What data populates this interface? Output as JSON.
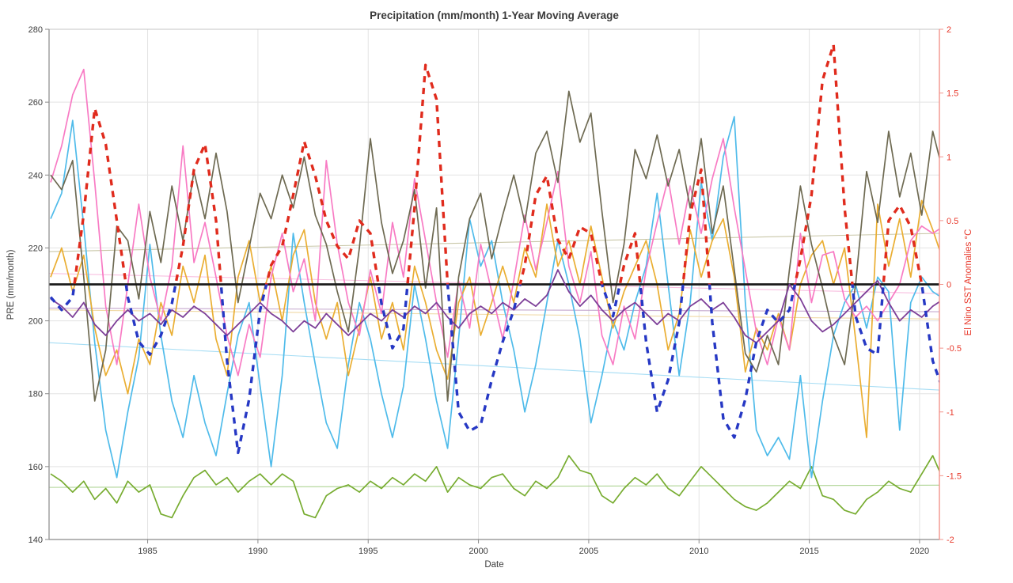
{
  "chart_data": {
    "type": "line",
    "title": "Precipitation (mm/month) 1-Year Moving Average",
    "xlabel": "Date",
    "ylabel_left": "PRE (mm/month)",
    "ylabel_right": "El Nino SST Anomalies °C",
    "grid": true,
    "legend": "none",
    "x_range": [
      1980.53,
      2020.9
    ],
    "x_ticks": [
      1985,
      1990,
      1995,
      2000,
      2005,
      2010,
      2015,
      2020
    ],
    "y_left": {
      "range": [
        140,
        280
      ],
      "ticks": [
        140,
        160,
        180,
        200,
        220,
        240,
        260,
        280
      ]
    },
    "y_right": {
      "range": [
        -2,
        2
      ],
      "ticks": [
        -2,
        -1.5,
        -1,
        -0.5,
        0,
        0.5,
        1,
        1.5,
        2
      ]
    },
    "colors": {
      "grid": "#e3e3e3",
      "box": "#c4c4c4",
      "left_spine": "#8a8a8a",
      "bottom_spine": "#8a8a8a",
      "right_spine": "#f2948c",
      "left_tick_text": "#3c3c3c",
      "right_tick_text": "#e8392b",
      "zero_line": "#1a1a1a"
    },
    "zero_line": {
      "axis": "right",
      "value": 0,
      "width": 2.8
    },
    "trend_lines": [
      {
        "name": "darkkhaki-trend",
        "axis": "left",
        "color": "#c9c7a8",
        "start": 219,
        "end": 224
      },
      {
        "name": "pink-trend",
        "axis": "left",
        "color": "#f8bfe0",
        "start": 213,
        "end": 207.5
      },
      {
        "name": "cyan-trend",
        "axis": "left",
        "color": "#a6ddf4",
        "start": 194,
        "end": 181
      },
      {
        "name": "orange-trend",
        "axis": "left",
        "color": "#f0d9a6",
        "start": 203,
        "end": 200.5
      },
      {
        "name": "purple-trend",
        "axis": "left",
        "color": "#c5a8ce",
        "start": 203.5,
        "end": 202.5
      },
      {
        "name": "green-trend",
        "axis": "left",
        "color": "#aed494",
        "start": 154.3,
        "end": 154.9
      }
    ],
    "series": [
      {
        "name": "precip-green",
        "axis": "left",
        "color": "#77AC30",
        "style": "solid",
        "width": 1.7,
        "x0": 1980.6,
        "dx": 0.5,
        "values": [
          158,
          156,
          153,
          156,
          151,
          154,
          150,
          156,
          153,
          155,
          147,
          146,
          152,
          157,
          159,
          155,
          157,
          153,
          156,
          158,
          155,
          158,
          156,
          147,
          146,
          152,
          154,
          155,
          153,
          156,
          154,
          157,
          155,
          158,
          156,
          160,
          153,
          157,
          155,
          154,
          157,
          158,
          154,
          152,
          156,
          154,
          157,
          163,
          159,
          158,
          152,
          150,
          154,
          157,
          155,
          158,
          154,
          152,
          156,
          160,
          157,
          154,
          151,
          149,
          148,
          150,
          153,
          156,
          154,
          160,
          152,
          151,
          148,
          147,
          151,
          153,
          156,
          154,
          153,
          158,
          163,
          156
        ]
      },
      {
        "name": "precip-cyan",
        "axis": "left",
        "color": "#4FBBEA",
        "style": "solid",
        "width": 1.7,
        "x0": 1980.6,
        "dx": 0.5,
        "values": [
          228,
          235,
          255,
          226,
          194,
          170,
          157,
          175,
          190,
          221,
          196,
          178,
          168,
          185,
          172,
          163,
          180,
          196,
          205,
          182,
          160,
          185,
          224,
          205,
          188,
          172,
          165,
          188,
          205,
          195,
          180,
          168,
          182,
          210,
          195,
          178,
          165,
          195,
          228,
          215,
          222,
          205,
          192,
          175,
          188,
          205,
          222,
          210,
          195,
          172,
          185,
          200,
          192,
          205,
          215,
          235,
          210,
          185,
          205,
          238,
          222,
          245,
          256,
          205,
          170,
          163,
          168,
          162,
          185,
          157,
          178,
          196,
          205,
          210,
          198,
          212,
          208,
          170,
          205,
          212,
          208,
          206
        ]
      },
      {
        "name": "precip-orange",
        "axis": "left",
        "color": "#EAAE32",
        "style": "solid",
        "width": 1.7,
        "x0": 1980.6,
        "dx": 0.5,
        "values": [
          212,
          220,
          208,
          218,
          198,
          185,
          192,
          180,
          195,
          188,
          205,
          196,
          215,
          205,
          218,
          195,
          185,
          212,
          222,
          205,
          215,
          200,
          218,
          225,
          205,
          195,
          205,
          185,
          198,
          212,
          195,
          205,
          192,
          215,
          205,
          192,
          184,
          205,
          212,
          196,
          205,
          215,
          205,
          220,
          212,
          232,
          215,
          222,
          210,
          226,
          212,
          198,
          208,
          215,
          222,
          210,
          192,
          202,
          225,
          212,
          222,
          228,
          212,
          186,
          198,
          192,
          202,
          192,
          210,
          218,
          222,
          210,
          220,
          195,
          168,
          232,
          215,
          228,
          212,
          233,
          225,
          216
        ]
      },
      {
        "name": "precip-pink",
        "axis": "left",
        "color": "#F87BC4",
        "style": "solid",
        "width": 1.7,
        "x0": 1980.6,
        "dx": 0.5,
        "values": [
          238,
          248,
          262,
          269,
          238,
          204,
          188,
          210,
          232,
          212,
          200,
          215,
          248,
          216,
          227,
          212,
          196,
          185,
          199,
          190,
          212,
          224,
          208,
          217,
          200,
          244,
          221,
          205,
          196,
          214,
          202,
          227,
          212,
          239,
          222,
          205,
          190,
          211,
          198,
          221,
          208,
          195,
          211,
          229,
          214,
          227,
          241,
          215,
          205,
          219,
          196,
          188,
          204,
          195,
          214,
          227,
          239,
          221,
          237,
          224,
          239,
          250,
          231,
          214,
          197,
          188,
          201,
          192,
          224,
          205,
          218,
          219,
          206,
          201,
          204,
          200,
          205,
          210,
          222,
          226,
          224,
          226
        ]
      },
      {
        "name": "precip-darkkhaki",
        "axis": "left",
        "color": "#6E6A52",
        "style": "solid",
        "width": 1.7,
        "x0": 1980.6,
        "dx": 0.5,
        "values": [
          240,
          236,
          244,
          212,
          178,
          192,
          226,
          222,
          206,
          230,
          216,
          237,
          222,
          241,
          228,
          246,
          230,
          205,
          220,
          235,
          228,
          240,
          231,
          245,
          229,
          221,
          208,
          197,
          220,
          250,
          227,
          213,
          222,
          236,
          209,
          231,
          178,
          212,
          228,
          235,
          217,
          229,
          240,
          227,
          246,
          252,
          238,
          263,
          249,
          257,
          230,
          205,
          221,
          247,
          239,
          251,
          237,
          247,
          231,
          250,
          224,
          237,
          214,
          191,
          186,
          196,
          188,
          214,
          237,
          221,
          209,
          196,
          188,
          210,
          241,
          227,
          252,
          234,
          246,
          229,
          252,
          240
        ]
      },
      {
        "name": "precip-purple",
        "axis": "left",
        "color": "#7D3F98",
        "style": "solid",
        "width": 1.8,
        "x0": 1980.6,
        "dx": 0.5,
        "values": [
          206,
          204,
          201,
          205,
          199,
          196,
          200,
          203,
          200,
          202,
          199,
          203,
          201,
          204,
          202,
          199,
          196,
          199,
          202,
          205,
          202,
          200,
          197,
          200,
          198,
          202,
          199,
          196,
          199,
          202,
          200,
          203,
          201,
          204,
          202,
          205,
          201,
          198,
          202,
          204,
          202,
          205,
          203,
          206,
          204,
          207,
          214,
          208,
          204,
          207,
          203,
          200,
          203,
          205,
          202,
          199,
          202,
          200,
          204,
          206,
          203,
          205,
          201,
          196,
          194,
          197,
          200,
          210,
          206,
          200,
          197,
          199,
          202,
          205,
          208,
          211,
          205,
          200,
          203,
          201,
          204,
          206
        ]
      },
      {
        "name": "enso-sst-anomaly",
        "axis": "right",
        "style": "dashed",
        "width": 3.4,
        "dash": "8 7",
        "positive_color": "#E02B1D",
        "negative_color": "#2638C4",
        "x0": 1980.6,
        "dx": 0.5,
        "values": [
          -0.1,
          -0.2,
          -0.1,
          0.55,
          1.38,
          1.1,
          0.5,
          -0.1,
          -0.45,
          -0.55,
          -0.4,
          -0.15,
          0.3,
          0.9,
          1.1,
          0.5,
          -0.6,
          -1.32,
          -0.9,
          -0.2,
          0.15,
          0.3,
          0.7,
          1.12,
          0.85,
          0.5,
          0.3,
          0.2,
          0.5,
          0.4,
          -0.15,
          -0.5,
          -0.35,
          0.6,
          1.72,
          1.45,
          0.0,
          -1.0,
          -1.15,
          -1.1,
          -0.75,
          -0.45,
          -0.2,
          0.15,
          0.7,
          0.85,
          0.35,
          0.2,
          0.45,
          0.4,
          0.0,
          -0.25,
          0.15,
          0.4,
          -0.45,
          -1.0,
          -0.75,
          -0.3,
          0.55,
          0.9,
          -0.3,
          -1.05,
          -1.2,
          -0.9,
          -0.45,
          -0.2,
          -0.3,
          -0.2,
          0.2,
          0.7,
          1.6,
          1.88,
          0.6,
          -0.25,
          -0.5,
          -0.55,
          0.5,
          0.62,
          0.45,
          0.0,
          -0.6,
          -0.85
        ]
      }
    ]
  }
}
